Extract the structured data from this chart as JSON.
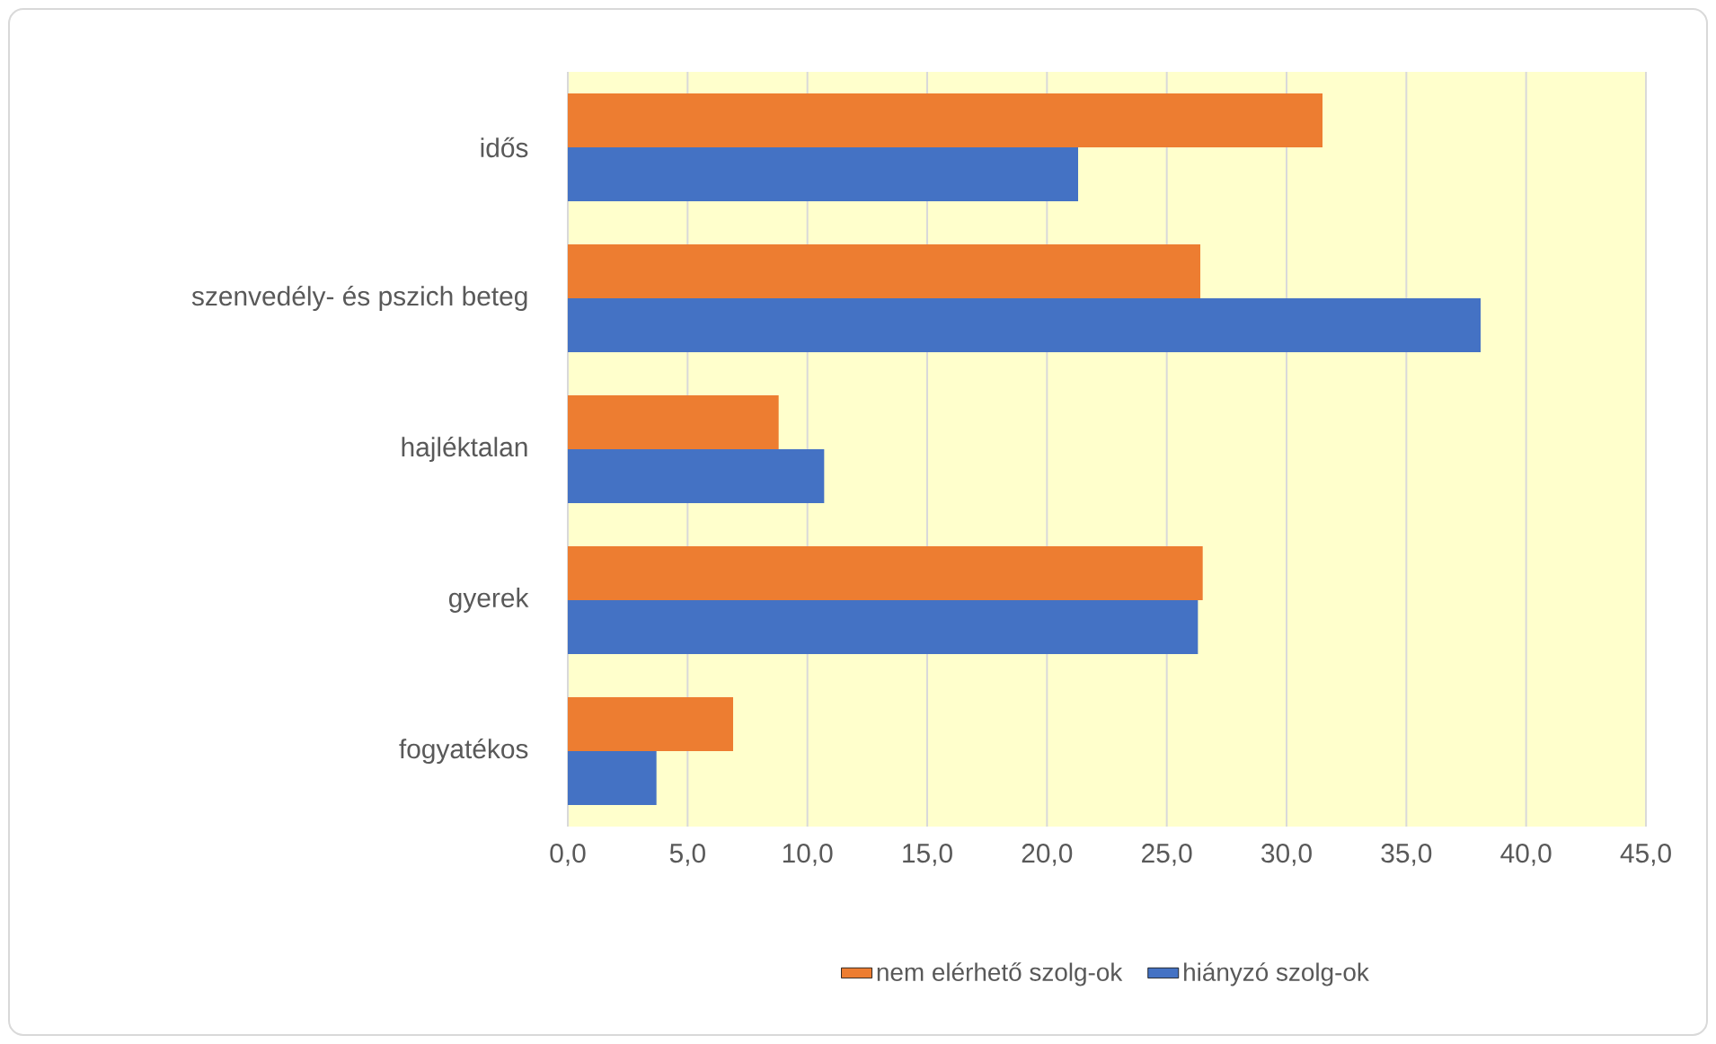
{
  "chart_data": {
    "type": "bar",
    "orientation": "horizontal",
    "categories": [
      "idős",
      "szenvedély- és pszich beteg",
      "hajléktalan",
      "gyerek",
      "fogyatékos"
    ],
    "series": [
      {
        "name": "nem elérhető szolg-ok",
        "color": "#ed7d31",
        "values": [
          31.5,
          26.4,
          8.8,
          26.5,
          6.9
        ]
      },
      {
        "name": "hiányzó szolg-ok",
        "color": "#4472c4",
        "values": [
          21.3,
          38.1,
          10.7,
          26.3,
          3.7
        ]
      }
    ],
    "xlim": [
      0,
      45
    ],
    "xticks": [
      {
        "value": 0,
        "label": "0,0"
      },
      {
        "value": 5,
        "label": "5,0"
      },
      {
        "value": 10,
        "label": "10,0"
      },
      {
        "value": 15,
        "label": "15,0"
      },
      {
        "value": 20,
        "label": "20,0"
      },
      {
        "value": 25,
        "label": "25,0"
      },
      {
        "value": 30,
        "label": "30,0"
      },
      {
        "value": 35,
        "label": "35,0"
      },
      {
        "value": 40,
        "label": "40,0"
      },
      {
        "value": 45,
        "label": "45,0"
      }
    ],
    "grid": "x",
    "legend": "bottom"
  }
}
